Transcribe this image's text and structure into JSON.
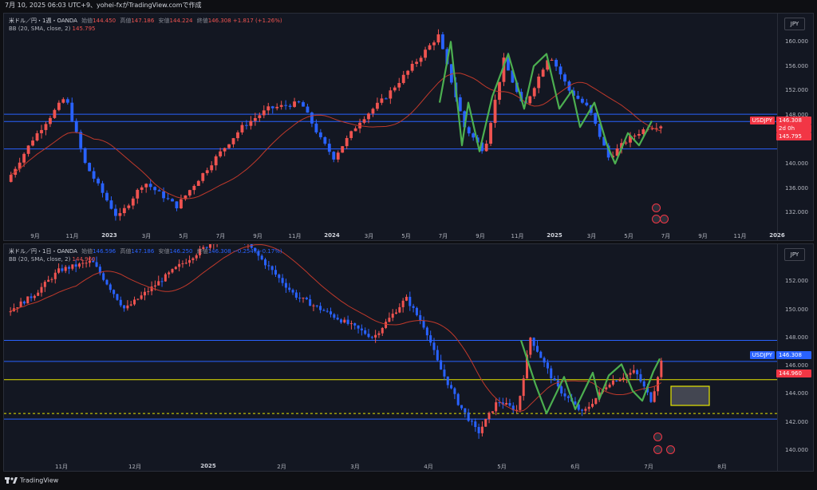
{
  "topbar": {
    "text": "7月 10, 2025 06:03 UTC+9、yohei-fxがTradingView.comで作成"
  },
  "pane1": {
    "symbol": "米ドル／円・1週・OANDA",
    "open_label": "始値",
    "open": "144.450",
    "high_label": "高値",
    "high": "147.186",
    "low_label": "安値",
    "low": "144.224",
    "close_label": "終値",
    "close": "146.308",
    "change": "+1.817 (+1.26%)",
    "bb_label": "BB (20, SMA, close, 2)",
    "bb_value": "145.795",
    "currency": "JPY",
    "yticks": [
      "160.000",
      "156.000",
      "152.000",
      "148.000",
      "144.000",
      "140.000",
      "136.000",
      "132.000"
    ],
    "xticks": [
      "9月",
      "11月",
      "2023",
      "3月",
      "5月",
      "7月",
      "9月",
      "11月",
      "2024",
      "3月",
      "5月",
      "7月",
      "9月",
      "11月",
      "2025",
      "3月",
      "5月",
      "7月",
      "9月",
      "11月",
      "2026"
    ],
    "badge_symbol": "USDJPY",
    "badge_price": "146.308",
    "badge_countdown": "2d 0h",
    "badge_bb": "145.795"
  },
  "pane2": {
    "symbol": "米ドル／円・1日・OANDA",
    "open_label": "始値",
    "open": "146.596",
    "high_label": "高値",
    "high": "147.186",
    "low_label": "安値",
    "low": "146.250",
    "close_label": "終値",
    "close": "146.308",
    "change": "−0.254 (−0.17%)",
    "bb_label": "BB (20, SMA, close, 2)",
    "bb_value": "144.960",
    "currency": "JPY",
    "yticks": [
      "152.000",
      "150.000",
      "148.000",
      "146.000",
      "144.000",
      "142.000",
      "140.000"
    ],
    "xticks": [
      "11月",
      "12月",
      "2025",
      "2月",
      "3月",
      "4月",
      "5月",
      "6月",
      "7月",
      "8月"
    ],
    "badge_symbol": "USDJPY",
    "badge_price": "146.308",
    "badge_bb": "144.960"
  },
  "footer": {
    "brand": "TradingView"
  },
  "colors": {
    "up": "#ef5350",
    "down": "#2962ff",
    "bb": "#c0392b",
    "wave": "#4caf50",
    "hline": "#2962ff",
    "yellow": "#e6e600"
  }
}
